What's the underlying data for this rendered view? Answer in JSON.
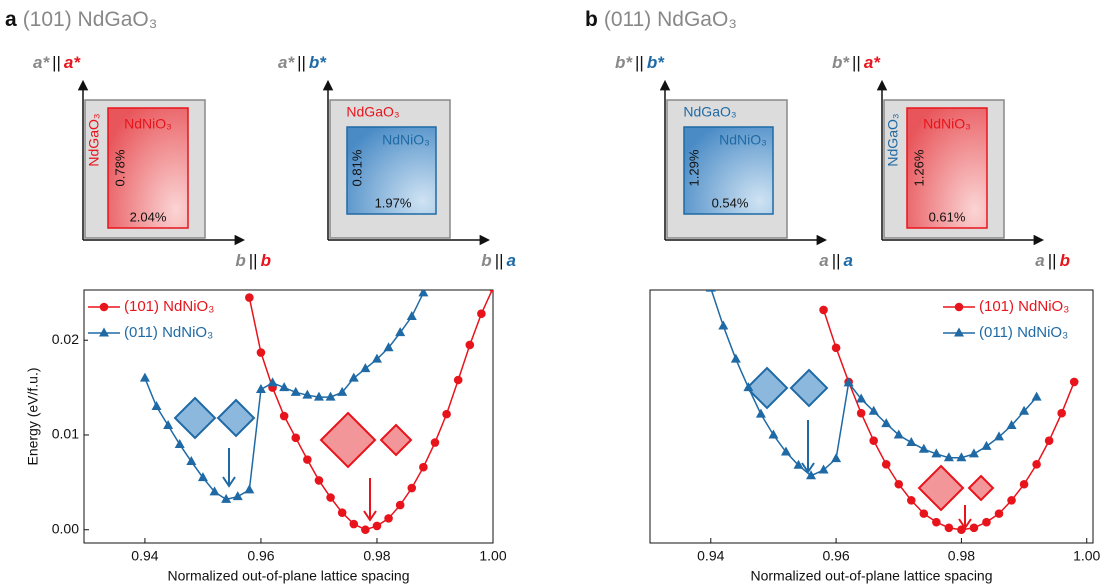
{
  "panels": [
    {
      "letter": "a",
      "title": "(101) NdGaO₃",
      "diagrams": [
        {
          "y_axis": [
            "a*",
            "||",
            "a*"
          ],
          "x_axis": [
            "b",
            "||",
            "b"
          ],
          "color": "red",
          "substrate_rotated": true,
          "substrate": "NdGaO₃",
          "film": "NdNiO₃",
          "strain_vertical": "0.78%",
          "strain_horizontal": "2.04%"
        },
        {
          "y_axis": [
            "a*",
            "||",
            "b*"
          ],
          "x_axis": [
            "b",
            "||",
            "a"
          ],
          "color": "blue",
          "substrate_rotated": false,
          "substrate": "NdGaO₃",
          "film": "NdNiO₃",
          "strain_vertical": "0.81%",
          "strain_horizontal": "1.97%"
        }
      ]
    },
    {
      "letter": "b",
      "title": "(011) NdGaO₃",
      "diagrams": [
        {
          "y_axis": [
            "b*",
            "||",
            "b*"
          ],
          "x_axis": [
            "a",
            "||",
            "a"
          ],
          "color": "blue",
          "substrate_rotated": false,
          "substrate": "NdGaO₃",
          "film": "NdNiO₃",
          "strain_vertical": "1.29%",
          "strain_horizontal": "0.54%"
        },
        {
          "y_axis": [
            "b*",
            "||",
            "a*"
          ],
          "x_axis": [
            "a",
            "||",
            "b"
          ],
          "color": "red",
          "substrate_rotated": true,
          "substrate": "NdGaO₃",
          "film": "NdNiO₃",
          "strain_vertical": "1.26%",
          "strain_horizontal": "0.61%"
        }
      ]
    }
  ],
  "chart_data": [
    {
      "type": "line",
      "x_label": "Normalized out-of-plane lattice spacing",
      "y_label": "Energy (eV/f.u.)",
      "legend": "upper left",
      "xlim": [
        0.9295,
        1.0
      ],
      "xticks": [
        0.94,
        0.96,
        0.98,
        {
          "value": 1,
          "label": "1.00"
        }
      ],
      "ylim": [
        -0.0014,
        0.0253
      ],
      "yticks": [
        {
          "value": 0,
          "label": "0.00"
        },
        0.01,
        0.02
      ],
      "series": [
        {
          "name": "(101) NdNiO₃",
          "color": "#e8141c",
          "marker": "circle",
          "x": [
            0.958,
            0.96,
            0.962,
            0.964,
            0.966,
            0.968,
            0.97,
            0.972,
            0.974,
            0.976,
            0.978,
            0.98,
            0.982,
            0.984,
            0.986,
            0.988,
            0.99,
            0.992,
            0.994,
            0.996,
            0.998,
            1.0
          ],
          "values": [
            0.0245,
            0.0187,
            0.015,
            0.012,
            0.0097,
            0.0074,
            0.0052,
            0.0034,
            0.0018,
            0.0006,
            0.0,
            0.0004,
            0.0012,
            0.0026,
            0.0044,
            0.0066,
            0.0092,
            0.0122,
            0.0158,
            0.0195,
            0.0228,
            0.0255
          ]
        },
        {
          "name": "(011) NdNiO₃",
          "color": "#1f6aa5",
          "marker": "triangle",
          "x": [
            0.94,
            0.942,
            0.944,
            0.946,
            0.948,
            0.95,
            0.952,
            0.954,
            0.956,
            0.958,
            0.96,
            0.962,
            0.964,
            0.966,
            0.968,
            0.97,
            0.972,
            0.974,
            0.976,
            0.978,
            0.98,
            0.982,
            0.984,
            0.986,
            0.988
          ],
          "values": [
            0.016,
            0.013,
            0.011,
            0.009,
            0.0072,
            0.0055,
            0.004,
            0.0032,
            0.0035,
            0.0042,
            0.0148,
            0.0155,
            0.015,
            0.0145,
            0.0142,
            0.014,
            0.014,
            0.0145,
            0.016,
            0.017,
            0.018,
            0.0192,
            0.0208,
            0.0225,
            0.025
          ]
        }
      ]
    },
    {
      "type": "line",
      "x_label": "Normalized out-of-plane lattice spacing",
      "legend": "upper right",
      "xlim": [
        0.9303,
        1.001
      ],
      "xticks": [
        0.94,
        0.96,
        0.98,
        {
          "value": 1,
          "label": "1.00"
        }
      ],
      "ylim": [
        -0.0014,
        0.0253
      ],
      "series": [
        {
          "name": "(101) NdNiO₃",
          "color": "#e8141c",
          "marker": "circle",
          "x": [
            0.958,
            0.96,
            0.962,
            0.964,
            0.966,
            0.968,
            0.97,
            0.972,
            0.974,
            0.976,
            0.978,
            0.98,
            0.982,
            0.984,
            0.986,
            0.988,
            0.99,
            0.992,
            0.994,
            0.996,
            0.998
          ],
          "values": [
            0.0232,
            0.0192,
            0.0156,
            0.0123,
            0.0094,
            0.0069,
            0.0048,
            0.0031,
            0.0017,
            0.0008,
            0.0002,
            0.0,
            0.0002,
            0.0008,
            0.0017,
            0.0031,
            0.0048,
            0.0069,
            0.0094,
            0.0123,
            0.0156
          ]
        },
        {
          "name": "(011) NdNiO₃",
          "color": "#1f6aa5",
          "marker": "triangle",
          "x": [
            0.94,
            0.942,
            0.944,
            0.946,
            0.948,
            0.95,
            0.952,
            0.954,
            0.956,
            0.958,
            0.96,
            0.962,
            0.964,
            0.966,
            0.968,
            0.97,
            0.972,
            0.974,
            0.976,
            0.978,
            0.98,
            0.982,
            0.984,
            0.986,
            0.988,
            0.99,
            0.992
          ],
          "values": [
            0.0255,
            0.0215,
            0.018,
            0.015,
            0.0122,
            0.01,
            0.0082,
            0.0068,
            0.0057,
            0.0063,
            0.0075,
            0.0155,
            0.0138,
            0.0125,
            0.0112,
            0.01,
            0.0092,
            0.0085,
            0.008,
            0.0076,
            0.0076,
            0.008,
            0.0088,
            0.0098,
            0.011,
            0.0125,
            0.014
          ]
        }
      ]
    }
  ]
}
